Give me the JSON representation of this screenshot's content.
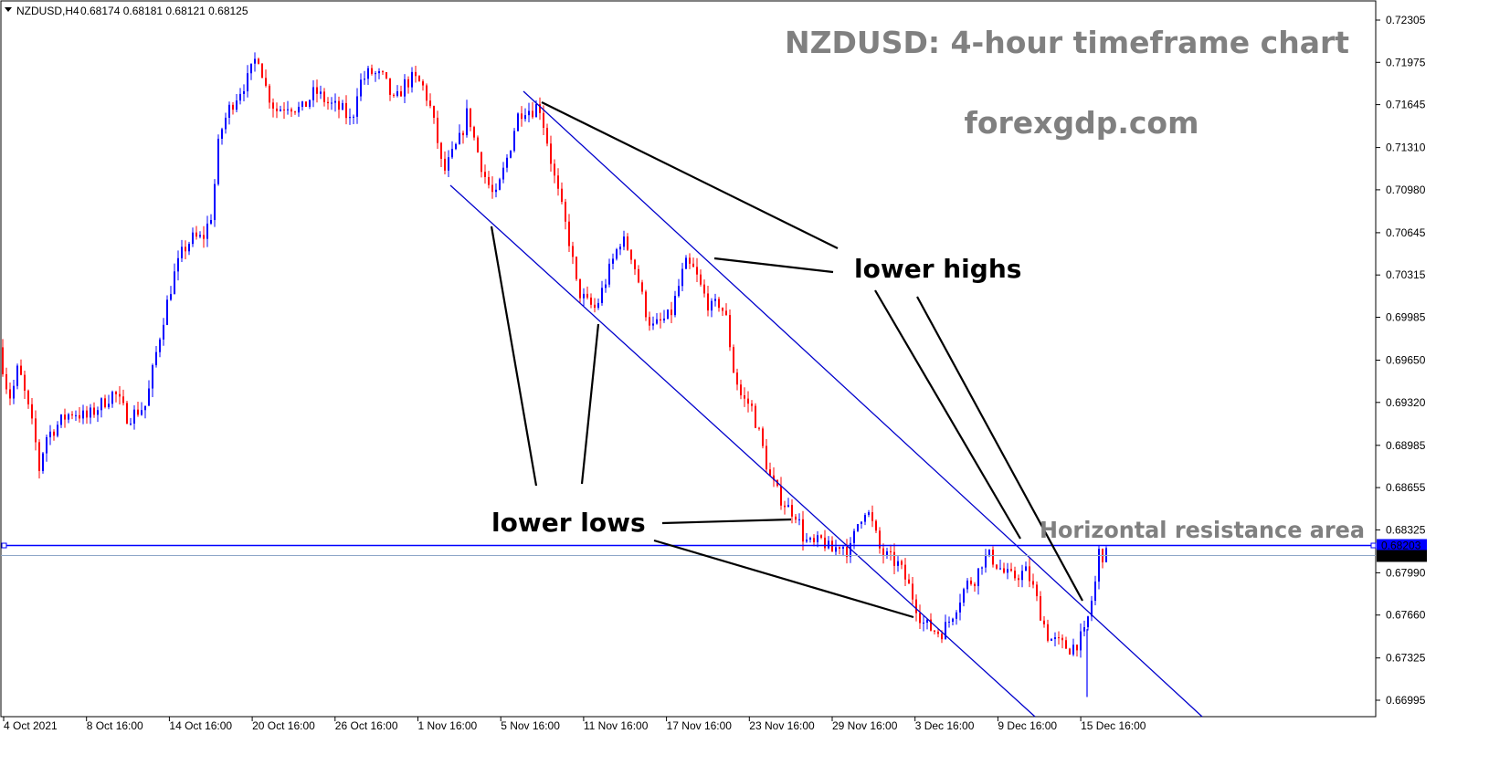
{
  "header": {
    "symbol": "NZDUSD,H4",
    "ohlc": "0.68174 0.68181 0.68121 0.68125"
  },
  "colors": {
    "bull": "#0000ff",
    "bear": "#ff0000",
    "channel": "#0000cc",
    "resistance": "#0000ff",
    "annotation_line": "#000000",
    "gray_text": "#808080"
  },
  "chart_data": {
    "type": "candlestick",
    "title": "NZDUSD: 4-hour timeframe chart",
    "subtitle": "forexgdp.com",
    "ylim": [
      0.668,
      0.724
    ],
    "y_ticks": [
      0.72305,
      0.71975,
      0.71645,
      0.7131,
      0.7098,
      0.70645,
      0.70315,
      0.69985,
      0.6965,
      0.6932,
      0.68985,
      0.68655,
      0.68325,
      0.6799,
      0.6766,
      0.67325,
      0.66995
    ],
    "x_ticks": [
      "4 Oct 2021",
      "8 Oct 16:00",
      "14 Oct 16:00",
      "20 Oct 16:00",
      "26 Oct 16:00",
      "1 Nov 16:00",
      "5 Nov 16:00",
      "11 Nov 16:00",
      "17 Nov 16:00",
      "23 Nov 16:00",
      "29 Nov 16:00",
      "3 Dec 16:00",
      "9 Dec 16:00",
      "15 Dec 16:00"
    ],
    "price_path": [
      [
        0,
        0.6975
      ],
      [
        5,
        0.695
      ],
      [
        12,
        0.6935
      ],
      [
        20,
        0.696
      ],
      [
        30,
        0.693
      ],
      [
        38,
        0.6905
      ],
      [
        43,
        0.688
      ],
      [
        50,
        0.6905
      ],
      [
        60,
        0.6912
      ],
      [
        70,
        0.692
      ],
      [
        80,
        0.6925
      ],
      [
        95,
        0.692
      ],
      [
        110,
        0.693
      ],
      [
        125,
        0.694
      ],
      [
        140,
        0.692
      ],
      [
        160,
        0.693
      ],
      [
        168,
        0.696
      ],
      [
        178,
        0.6995
      ],
      [
        190,
        0.703
      ],
      [
        200,
        0.705
      ],
      [
        210,
        0.706
      ],
      [
        222,
        0.706
      ],
      [
        232,
        0.708
      ],
      [
        240,
        0.714
      ],
      [
        250,
        0.716
      ],
      [
        262,
        0.7175
      ],
      [
        272,
        0.7185
      ],
      [
        282,
        0.7205
      ],
      [
        292,
        0.7175
      ],
      [
        302,
        0.716
      ],
      [
        315,
        0.7165
      ],
      [
        330,
        0.716
      ],
      [
        345,
        0.7175
      ],
      [
        360,
        0.7165
      ],
      [
        375,
        0.716
      ],
      [
        385,
        0.715
      ],
      [
        392,
        0.718
      ],
      [
        405,
        0.719
      ],
      [
        420,
        0.7185
      ],
      [
        432,
        0.7165
      ],
      [
        442,
        0.718
      ],
      [
        452,
        0.7185
      ],
      [
        462,
        0.718
      ],
      [
        470,
        0.7165
      ],
      [
        478,
        0.714
      ],
      [
        485,
        0.711
      ],
      [
        495,
        0.7125
      ],
      [
        505,
        0.714
      ],
      [
        512,
        0.716
      ],
      [
        520,
        0.7135
      ],
      [
        530,
        0.711
      ],
      [
        542,
        0.709
      ],
      [
        550,
        0.711
      ],
      [
        558,
        0.713
      ],
      [
        566,
        0.7155
      ],
      [
        574,
        0.7162
      ],
      [
        582,
        0.716
      ],
      [
        590,
        0.7165
      ],
      [
        598,
        0.714
      ],
      [
        606,
        0.711
      ],
      [
        616,
        0.708
      ],
      [
        624,
        0.7055
      ],
      [
        632,
        0.702
      ],
      [
        642,
        0.701
      ],
      [
        652,
        0.7005
      ],
      [
        662,
        0.7025
      ],
      [
        672,
        0.7045
      ],
      [
        680,
        0.706
      ],
      [
        690,
        0.705
      ],
      [
        698,
        0.703
      ],
      [
        706,
        0.7005
      ],
      [
        714,
        0.699
      ],
      [
        724,
        0.6995
      ],
      [
        734,
        0.7
      ],
      [
        742,
        0.702
      ],
      [
        750,
        0.704
      ],
      [
        760,
        0.7035
      ],
      [
        768,
        0.702
      ],
      [
        778,
        0.7005
      ],
      [
        788,
        0.701
      ],
      [
        796,
        0.6995
      ],
      [
        802,
        0.696
      ],
      [
        812,
        0.6935
      ],
      [
        822,
        0.693
      ],
      [
        832,
        0.6905
      ],
      [
        842,
        0.6875
      ],
      [
        852,
        0.686
      ],
      [
        862,
        0.685
      ],
      [
        872,
        0.6845
      ],
      [
        880,
        0.6825
      ],
      [
        890,
        0.682
      ],
      [
        900,
        0.6825
      ],
      [
        910,
        0.6815
      ],
      [
        920,
        0.6822
      ],
      [
        930,
        0.6815
      ],
      [
        940,
        0.684
      ],
      [
        948,
        0.685
      ],
      [
        956,
        0.6835
      ],
      [
        964,
        0.6815
      ],
      [
        974,
        0.681
      ],
      [
        984,
        0.6805
      ],
      [
        994,
        0.679
      ],
      [
        1002,
        0.6775
      ],
      [
        1010,
        0.676
      ],
      [
        1020,
        0.6755
      ],
      [
        1030,
        0.6752
      ],
      [
        1038,
        0.676
      ],
      [
        1048,
        0.6775
      ],
      [
        1058,
        0.679
      ],
      [
        1068,
        0.6795
      ],
      [
        1076,
        0.681
      ],
      [
        1084,
        0.6812
      ],
      [
        1092,
        0.6805
      ],
      [
        1100,
        0.6798
      ],
      [
        1108,
        0.6795
      ],
      [
        1116,
        0.6798
      ],
      [
        1124,
        0.68
      ],
      [
        1132,
        0.6785
      ],
      [
        1140,
        0.6765
      ],
      [
        1148,
        0.6748
      ],
      [
        1156,
        0.6745
      ],
      [
        1164,
        0.6742
      ],
      [
        1172,
        0.674
      ],
      [
        1180,
        0.6745
      ],
      [
        1188,
        0.6752
      ],
      [
        1194,
        0.6775
      ],
      [
        1198,
        0.6785
      ],
      [
        1203,
        0.6815
      ],
      [
        1208,
        0.68125
      ]
    ],
    "resistance_level": 0.68203,
    "current_price": 0.68125,
    "price_labels": [
      "0.68203",
      "0.68125"
    ],
    "annotations": {
      "lower_highs": "lower highs",
      "lower_lows": "lower lows",
      "resistance": "Horizontal resistance area"
    }
  }
}
